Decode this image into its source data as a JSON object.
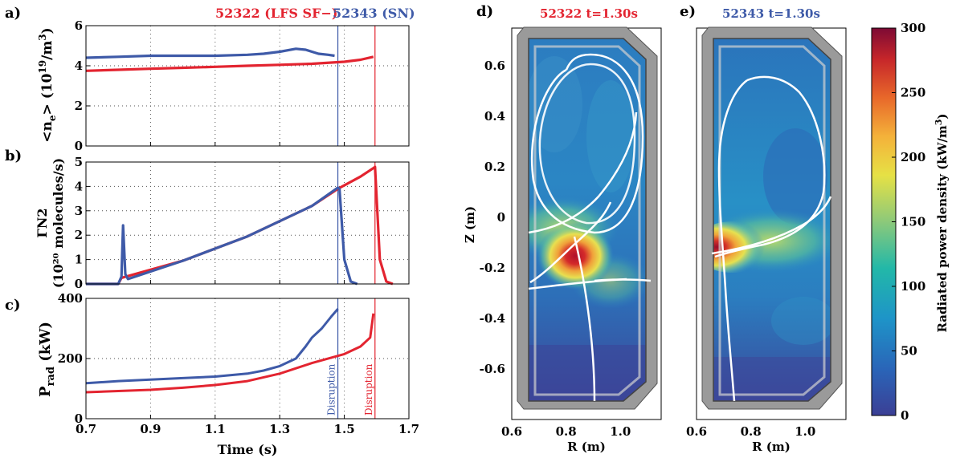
{
  "colors": {
    "red": "#e32430",
    "blue": "#3e5aa8"
  },
  "chart_data": [
    {
      "id": "a",
      "type": "line",
      "panel_label": "a)",
      "ylabel_parts": [
        "<n",
        "e",
        "> (10",
        "19",
        "/m",
        "3",
        ")"
      ],
      "xlim": [
        0.7,
        1.7
      ],
      "ylim": [
        0,
        6
      ],
      "yticks": [
        "0",
        "2",
        "4",
        "6"
      ],
      "header_left": "52322 (LFS SF−)",
      "header_right": "52343 (SN)",
      "series": [
        {
          "name": "52322 (LFS SF−)",
          "color": "#e32430",
          "x": [
            0.7,
            0.8,
            0.9,
            1.0,
            1.1,
            1.2,
            1.3,
            1.4,
            1.5,
            1.55,
            1.59
          ],
          "y": [
            3.75,
            3.8,
            3.85,
            3.9,
            3.95,
            4.0,
            4.05,
            4.1,
            4.2,
            4.3,
            4.45
          ]
        },
        {
          "name": "52343 (SN)",
          "color": "#3e5aa8",
          "x": [
            0.7,
            0.8,
            0.9,
            1.0,
            1.1,
            1.2,
            1.25,
            1.3,
            1.35,
            1.38,
            1.42,
            1.45,
            1.47
          ],
          "y": [
            4.4,
            4.45,
            4.5,
            4.5,
            4.5,
            4.55,
            4.6,
            4.7,
            4.85,
            4.8,
            4.6,
            4.55,
            4.5
          ]
        }
      ]
    },
    {
      "id": "b",
      "type": "line",
      "panel_label": "b)",
      "ylabel_line1": "ΓN2",
      "ylabel_line2": "(10²⁰ molecules/s)",
      "xlim": [
        0.7,
        1.7
      ],
      "ylim": [
        0,
        5
      ],
      "yticks": [
        "0",
        "1",
        "2",
        "3",
        "4",
        "5"
      ],
      "series": [
        {
          "name": "52322 (LFS SF−)",
          "color": "#e32430",
          "x": [
            0.7,
            0.8,
            0.81,
            1.0,
            1.2,
            1.4,
            1.48,
            1.55,
            1.59,
            1.595,
            1.61,
            1.63,
            1.65
          ],
          "y": [
            0,
            0,
            0.25,
            0.95,
            1.95,
            3.2,
            3.9,
            4.4,
            4.75,
            4.8,
            1.0,
            0.1,
            0
          ]
        },
        {
          "name": "52343 (SN)",
          "color": "#3e5aa8",
          "x": [
            0.7,
            0.8,
            0.81,
            0.815,
            0.822,
            0.83,
            1.0,
            1.2,
            1.4,
            1.48,
            1.485,
            1.5,
            1.52,
            1.54
          ],
          "y": [
            0,
            0,
            0.3,
            2.4,
            0.4,
            0.2,
            0.95,
            1.95,
            3.2,
            3.95,
            3.9,
            1.0,
            0.1,
            0
          ]
        }
      ]
    },
    {
      "id": "c",
      "type": "line",
      "panel_label": "c)",
      "ylabel_main": "P",
      "ylabel_sub": "rad",
      "ylabel_rest": " (kW)",
      "xlabel": "Time (s)",
      "xlim": [
        0.7,
        1.7
      ],
      "ylim": [
        0,
        400
      ],
      "yticks": [
        "0",
        "200",
        "400"
      ],
      "xticks": [
        "0.7",
        "0.9",
        "1.1",
        "1.3",
        "1.5",
        "1.7"
      ],
      "series": [
        {
          "name": "52322 (LFS SF−)",
          "color": "#e32430",
          "x": [
            0.7,
            0.8,
            0.9,
            1.0,
            1.1,
            1.2,
            1.3,
            1.4,
            1.5,
            1.55,
            1.58,
            1.59
          ],
          "y": [
            88,
            92,
            96,
            103,
            112,
            125,
            150,
            185,
            215,
            240,
            270,
            350
          ]
        },
        {
          "name": "52343 (SN)",
          "color": "#3e5aa8",
          "x": [
            0.7,
            0.8,
            0.9,
            1.0,
            1.1,
            1.2,
            1.25,
            1.3,
            1.35,
            1.38,
            1.4,
            1.43,
            1.46,
            1.48
          ],
          "y": [
            118,
            125,
            130,
            135,
            140,
            150,
            160,
            175,
            200,
            240,
            270,
            300,
            340,
            365
          ]
        }
      ],
      "vlines": [
        {
          "x": 1.48,
          "color": "#3e5aa8",
          "label": "Disruption"
        },
        {
          "x": 1.595,
          "color": "#e32430",
          "label": "Disruption"
        }
      ]
    },
    {
      "id": "d",
      "type": "heatmap",
      "panel_label": "d)",
      "title": "52322 t=1.30s",
      "title_color": "#e32430",
      "xlabel": "R (m)",
      "ylabel": "Z (m)",
      "xlim": [
        0.6,
        1.15
      ],
      "ylim": [
        -0.8,
        0.75
      ],
      "xticks": [
        "0.6",
        "0.8",
        "1.0"
      ],
      "yticks": [
        "0.6",
        "0.4",
        "0.2",
        "0",
        "-0.2",
        "-0.4",
        "-0.6"
      ]
    },
    {
      "id": "e",
      "type": "heatmap",
      "panel_label": "e)",
      "title": "52343 t=1.30s",
      "title_color": "#3e5aa8",
      "xlabel": "R (m)",
      "xlim": [
        0.6,
        1.15
      ],
      "ylim": [
        -0.8,
        0.75
      ],
      "xticks": [
        "0.6",
        "0.8",
        "1.0"
      ]
    },
    {
      "id": "colorbar",
      "type": "colorbar",
      "label_main": "Radiated power density (kW/m",
      "label_sup": "3",
      "label_end": ")",
      "range": [
        0,
        300
      ],
      "ticks": [
        "0",
        "50",
        "100",
        "150",
        "200",
        "250",
        "300"
      ]
    }
  ]
}
